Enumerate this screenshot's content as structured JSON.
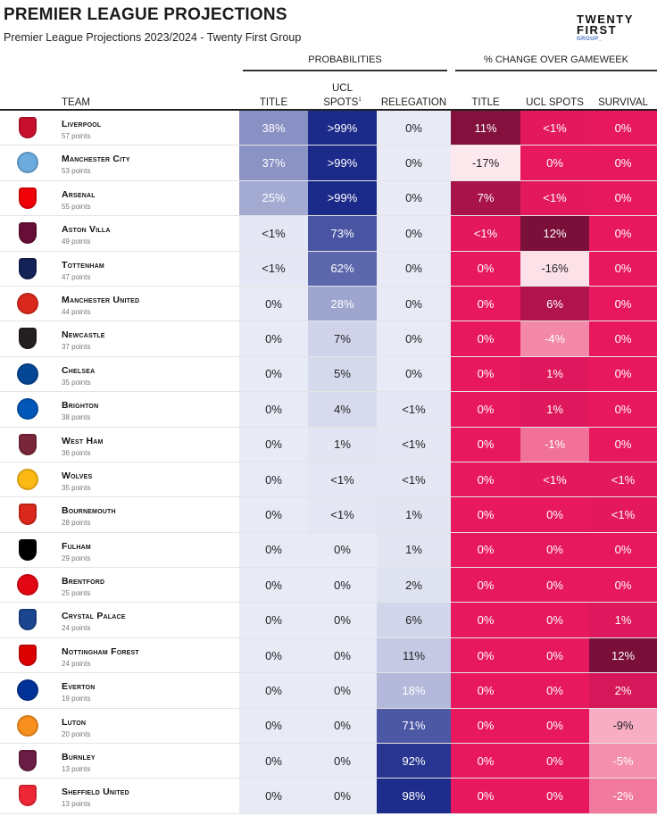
{
  "header": {
    "title": "PREMIER LEAGUE PROJECTIONS",
    "subtitle": "Premier League Projections 2023/2024 - Twenty First Group",
    "logo_line1": "TWENTY",
    "logo_line2": "FIRST",
    "logo_line3": "GROUP_",
    "group_probabilities": "PROBABILITIES",
    "group_change": "% CHANGE OVER GAMEWEEK"
  },
  "columns": {
    "team": "TEAM",
    "title": "TITLE",
    "ucl_top": "UCL",
    "ucl_bottom": "SPOTS",
    "ucl_sup": "1",
    "relegation": "RELEGATION",
    "chg_title": "TITLE",
    "chg_ucl": "UCL SPOTS",
    "chg_survival": "SURVIVAL"
  },
  "colors": {
    "prob_scale_low": "#e9ebf6",
    "prob_scale_high": "#1a2a8c",
    "change_neutral": "#e8185f",
    "change_positive": "#7a0f3a",
    "change_negative": "#fde8ee"
  },
  "chart_data": {
    "type": "table",
    "title": "PREMIER LEAGUE PROJECTIONS",
    "columns": [
      "TITLE",
      "UCL SPOTS",
      "RELEGATION",
      "TITLE",
      "UCL SPOTS",
      "SURVIVAL"
    ],
    "rows": [
      {
        "team": "Liverpool",
        "points": "57 points",
        "crest": "liverpool-crest",
        "color": "#c8102e",
        "title": "38%",
        "ucl": ">99%",
        "relegation": "0%",
        "d_title": "11%",
        "d_ucl": "<1%",
        "d_survival": "0%",
        "v": [
          38,
          99.5,
          0
        ],
        "dv": [
          11,
          0.5,
          0
        ]
      },
      {
        "team": "Manchester City",
        "points": "53 points",
        "crest": "man-city-crest",
        "color": "#6cabdd",
        "title": "37%",
        "ucl": ">99%",
        "relegation": "0%",
        "d_title": "-17%",
        "d_ucl": "0%",
        "d_survival": "0%",
        "v": [
          37,
          99.5,
          0
        ],
        "dv": [
          -17,
          0,
          0
        ]
      },
      {
        "team": "Arsenal",
        "points": "55 points",
        "crest": "arsenal-crest",
        "color": "#ef0107",
        "title": "25%",
        "ucl": ">99%",
        "relegation": "0%",
        "d_title": "7%",
        "d_ucl": "<1%",
        "d_survival": "0%",
        "v": [
          25,
          99.5,
          0
        ],
        "dv": [
          7,
          0.5,
          0
        ]
      },
      {
        "team": "Aston Villa",
        "points": "49 points",
        "crest": "aston-villa-crest",
        "color": "#670e36",
        "title": "<1%",
        "ucl": "73%",
        "relegation": "0%",
        "d_title": "<1%",
        "d_ucl": "12%",
        "d_survival": "0%",
        "v": [
          0.5,
          73,
          0
        ],
        "dv": [
          0.5,
          12,
          0
        ]
      },
      {
        "team": "Tottenham",
        "points": "47 points",
        "crest": "tottenham-crest",
        "color": "#132257",
        "title": "<1%",
        "ucl": "62%",
        "relegation": "0%",
        "d_title": "0%",
        "d_ucl": "-16%",
        "d_survival": "0%",
        "v": [
          0.5,
          62,
          0
        ],
        "dv": [
          0,
          -16,
          0
        ]
      },
      {
        "team": "Manchester United",
        "points": "44 points",
        "crest": "man-united-crest",
        "color": "#da291c",
        "title": "0%",
        "ucl": "28%",
        "relegation": "0%",
        "d_title": "0%",
        "d_ucl": "6%",
        "d_survival": "0%",
        "v": [
          0,
          28,
          0
        ],
        "dv": [
          0,
          6,
          0
        ]
      },
      {
        "team": "Newcastle",
        "points": "37 points",
        "crest": "newcastle-crest",
        "color": "#241f20",
        "title": "0%",
        "ucl": "7%",
        "relegation": "0%",
        "d_title": "0%",
        "d_ucl": "-4%",
        "d_survival": "0%",
        "v": [
          0,
          7,
          0
        ],
        "dv": [
          0,
          -4,
          0
        ]
      },
      {
        "team": "Chelsea",
        "points": "35 points",
        "crest": "chelsea-crest",
        "color": "#034694",
        "title": "0%",
        "ucl": "5%",
        "relegation": "0%",
        "d_title": "0%",
        "d_ucl": "1%",
        "d_survival": "0%",
        "v": [
          0,
          5,
          0
        ],
        "dv": [
          0,
          1,
          0
        ]
      },
      {
        "team": "Brighton",
        "points": "38 points",
        "crest": "brighton-crest",
        "color": "#0057b8",
        "title": "0%",
        "ucl": "4%",
        "relegation": "<1%",
        "d_title": "0%",
        "d_ucl": "1%",
        "d_survival": "0%",
        "v": [
          0,
          4,
          0.5
        ],
        "dv": [
          0,
          1,
          0
        ]
      },
      {
        "team": "West Ham",
        "points": "36 points",
        "crest": "west-ham-crest",
        "color": "#7a263a",
        "title": "0%",
        "ucl": "1%",
        "relegation": "<1%",
        "d_title": "0%",
        "d_ucl": "-1%",
        "d_survival": "0%",
        "v": [
          0,
          1,
          0.5
        ],
        "dv": [
          0,
          -1,
          0
        ]
      },
      {
        "team": "Wolves",
        "points": "35 points",
        "crest": "wolves-crest",
        "color": "#fdb913",
        "title": "0%",
        "ucl": "<1%",
        "relegation": "<1%",
        "d_title": "0%",
        "d_ucl": "<1%",
        "d_survival": "<1%",
        "v": [
          0,
          0.5,
          0.5
        ],
        "dv": [
          0,
          0.5,
          0.5
        ]
      },
      {
        "team": "Bournemouth",
        "points": "28 points",
        "crest": "bournemouth-crest",
        "color": "#da291c",
        "title": "0%",
        "ucl": "<1%",
        "relegation": "1%",
        "d_title": "0%",
        "d_ucl": "0%",
        "d_survival": "<1%",
        "v": [
          0,
          0.5,
          1
        ],
        "dv": [
          0,
          0,
          0.5
        ]
      },
      {
        "team": "Fulham",
        "points": "29 points",
        "crest": "fulham-crest",
        "color": "#000000",
        "title": "0%",
        "ucl": "0%",
        "relegation": "1%",
        "d_title": "0%",
        "d_ucl": "0%",
        "d_survival": "0%",
        "v": [
          0,
          0,
          1
        ],
        "dv": [
          0,
          0,
          0
        ]
      },
      {
        "team": "Brentford",
        "points": "25 points",
        "crest": "brentford-crest",
        "color": "#e30613",
        "title": "0%",
        "ucl": "0%",
        "relegation": "2%",
        "d_title": "0%",
        "d_ucl": "0%",
        "d_survival": "0%",
        "v": [
          0,
          0,
          2
        ],
        "dv": [
          0,
          0,
          0
        ]
      },
      {
        "team": "Crystal Palace",
        "points": "24 points",
        "crest": "crystal-palace-crest",
        "color": "#1b458f",
        "title": "0%",
        "ucl": "0%",
        "relegation": "6%",
        "d_title": "0%",
        "d_ucl": "0%",
        "d_survival": "1%",
        "v": [
          0,
          0,
          6
        ],
        "dv": [
          0,
          0,
          1
        ]
      },
      {
        "team": "Nottingham Forest",
        "points": "24 points",
        "crest": "nottingham-forest-crest",
        "color": "#dd0000",
        "title": "0%",
        "ucl": "0%",
        "relegation": "11%",
        "d_title": "0%",
        "d_ucl": "0%",
        "d_survival": "12%",
        "v": [
          0,
          0,
          11
        ],
        "dv": [
          0,
          0,
          12
        ]
      },
      {
        "team": "Everton",
        "points": "19 points",
        "crest": "everton-crest",
        "color": "#003399",
        "title": "0%",
        "ucl": "0%",
        "relegation": "18%",
        "d_title": "0%",
        "d_ucl": "0%",
        "d_survival": "2%",
        "v": [
          0,
          0,
          18
        ],
        "dv": [
          0,
          0,
          2
        ]
      },
      {
        "team": "Luton",
        "points": "20 points",
        "crest": "luton-crest",
        "color": "#f78f1e",
        "title": "0%",
        "ucl": "0%",
        "relegation": "71%",
        "d_title": "0%",
        "d_ucl": "0%",
        "d_survival": "-9%",
        "v": [
          0,
          0,
          71
        ],
        "dv": [
          0,
          0,
          -9
        ]
      },
      {
        "team": "Burnley",
        "points": "13 points",
        "crest": "burnley-crest",
        "color": "#6c1d45",
        "title": "0%",
        "ucl": "0%",
        "relegation": "92%",
        "d_title": "0%",
        "d_ucl": "0%",
        "d_survival": "-5%",
        "v": [
          0,
          0,
          92
        ],
        "dv": [
          0,
          0,
          -5
        ]
      },
      {
        "team": "Sheffield United",
        "points": "13 points",
        "crest": "sheffield-united-crest",
        "color": "#ee2737",
        "title": "0%",
        "ucl": "0%",
        "relegation": "98%",
        "d_title": "0%",
        "d_ucl": "0%",
        "d_survival": "-2%",
        "v": [
          0,
          0,
          98
        ],
        "dv": [
          0,
          0,
          -2
        ]
      }
    ]
  }
}
